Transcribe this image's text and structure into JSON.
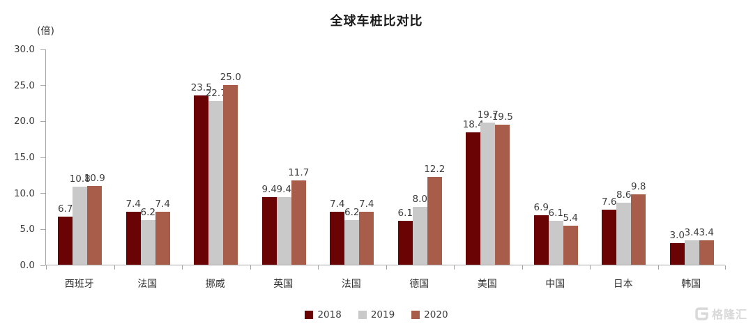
{
  "title": "全球车桩比对比",
  "unit_label": "(倍)",
  "watermark": "格隆汇",
  "legend": [
    {
      "label": "2018",
      "color": "#6a0303"
    },
    {
      "label": "2019",
      "color": "#c9c9c9"
    },
    {
      "label": "2020",
      "color": "#a85d4b"
    }
  ],
  "chart_data": {
    "type": "bar",
    "title": "全球车桩比对比",
    "xlabel": "",
    "ylabel": "(倍)",
    "categories": [
      "西班牙",
      "法国",
      "挪威",
      "英国",
      "法国",
      "德国",
      "美国",
      "中国",
      "日本",
      "韩国"
    ],
    "series": [
      {
        "name": "2018",
        "color": "#6a0303",
        "values": [
          6.7,
          7.4,
          23.5,
          9.4,
          7.4,
          6.1,
          18.4,
          6.9,
          7.6,
          3.0
        ]
      },
      {
        "name": "2019",
        "color": "#c9c9c9",
        "values": [
          10.8,
          6.2,
          22.7,
          9.4,
          6.2,
          8.0,
          19.7,
          6.1,
          8.6,
          3.4
        ]
      },
      {
        "name": "2020",
        "color": "#a85d4b",
        "values": [
          10.9,
          7.4,
          25.0,
          11.7,
          7.4,
          12.2,
          19.5,
          5.4,
          9.8,
          3.4
        ]
      }
    ],
    "ylim": [
      0,
      30
    ],
    "yticks": [
      0.0,
      5.0,
      10.0,
      15.0,
      20.0,
      25.0,
      30.0
    ],
    "value_label_decimals": 1,
    "grid": false,
    "legend_position": "bottom",
    "bar_labels": true
  }
}
